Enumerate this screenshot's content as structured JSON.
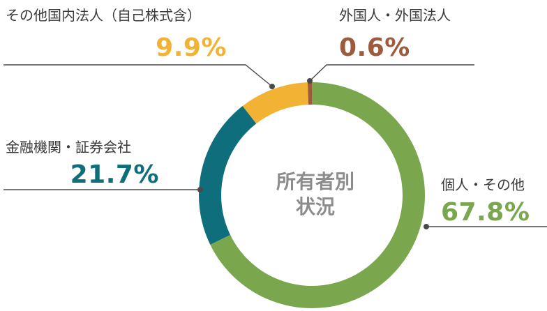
{
  "chart_data": {
    "type": "pie",
    "variant": "donut",
    "center_label_lines": [
      "所有者別",
      "状況"
    ],
    "slices": [
      {
        "key": "individual",
        "name": "個人・その他",
        "value": 67.8,
        "value_label": "67.8%",
        "color": "#7aa64e"
      },
      {
        "key": "financial",
        "name": "金融機関・証券会社",
        "value": 21.7,
        "value_label": "21.7%",
        "color": "#0e6e7b"
      },
      {
        "key": "other-domestic",
        "name": "その他国内法人（自己株式含）",
        "value": 9.9,
        "value_label": "9.9%",
        "color": "#f2b234"
      },
      {
        "key": "foreign",
        "name": "外国人・外国法人",
        "value": 0.6,
        "value_label": "0.6%",
        "color": "#9c5b3d"
      }
    ]
  }
}
